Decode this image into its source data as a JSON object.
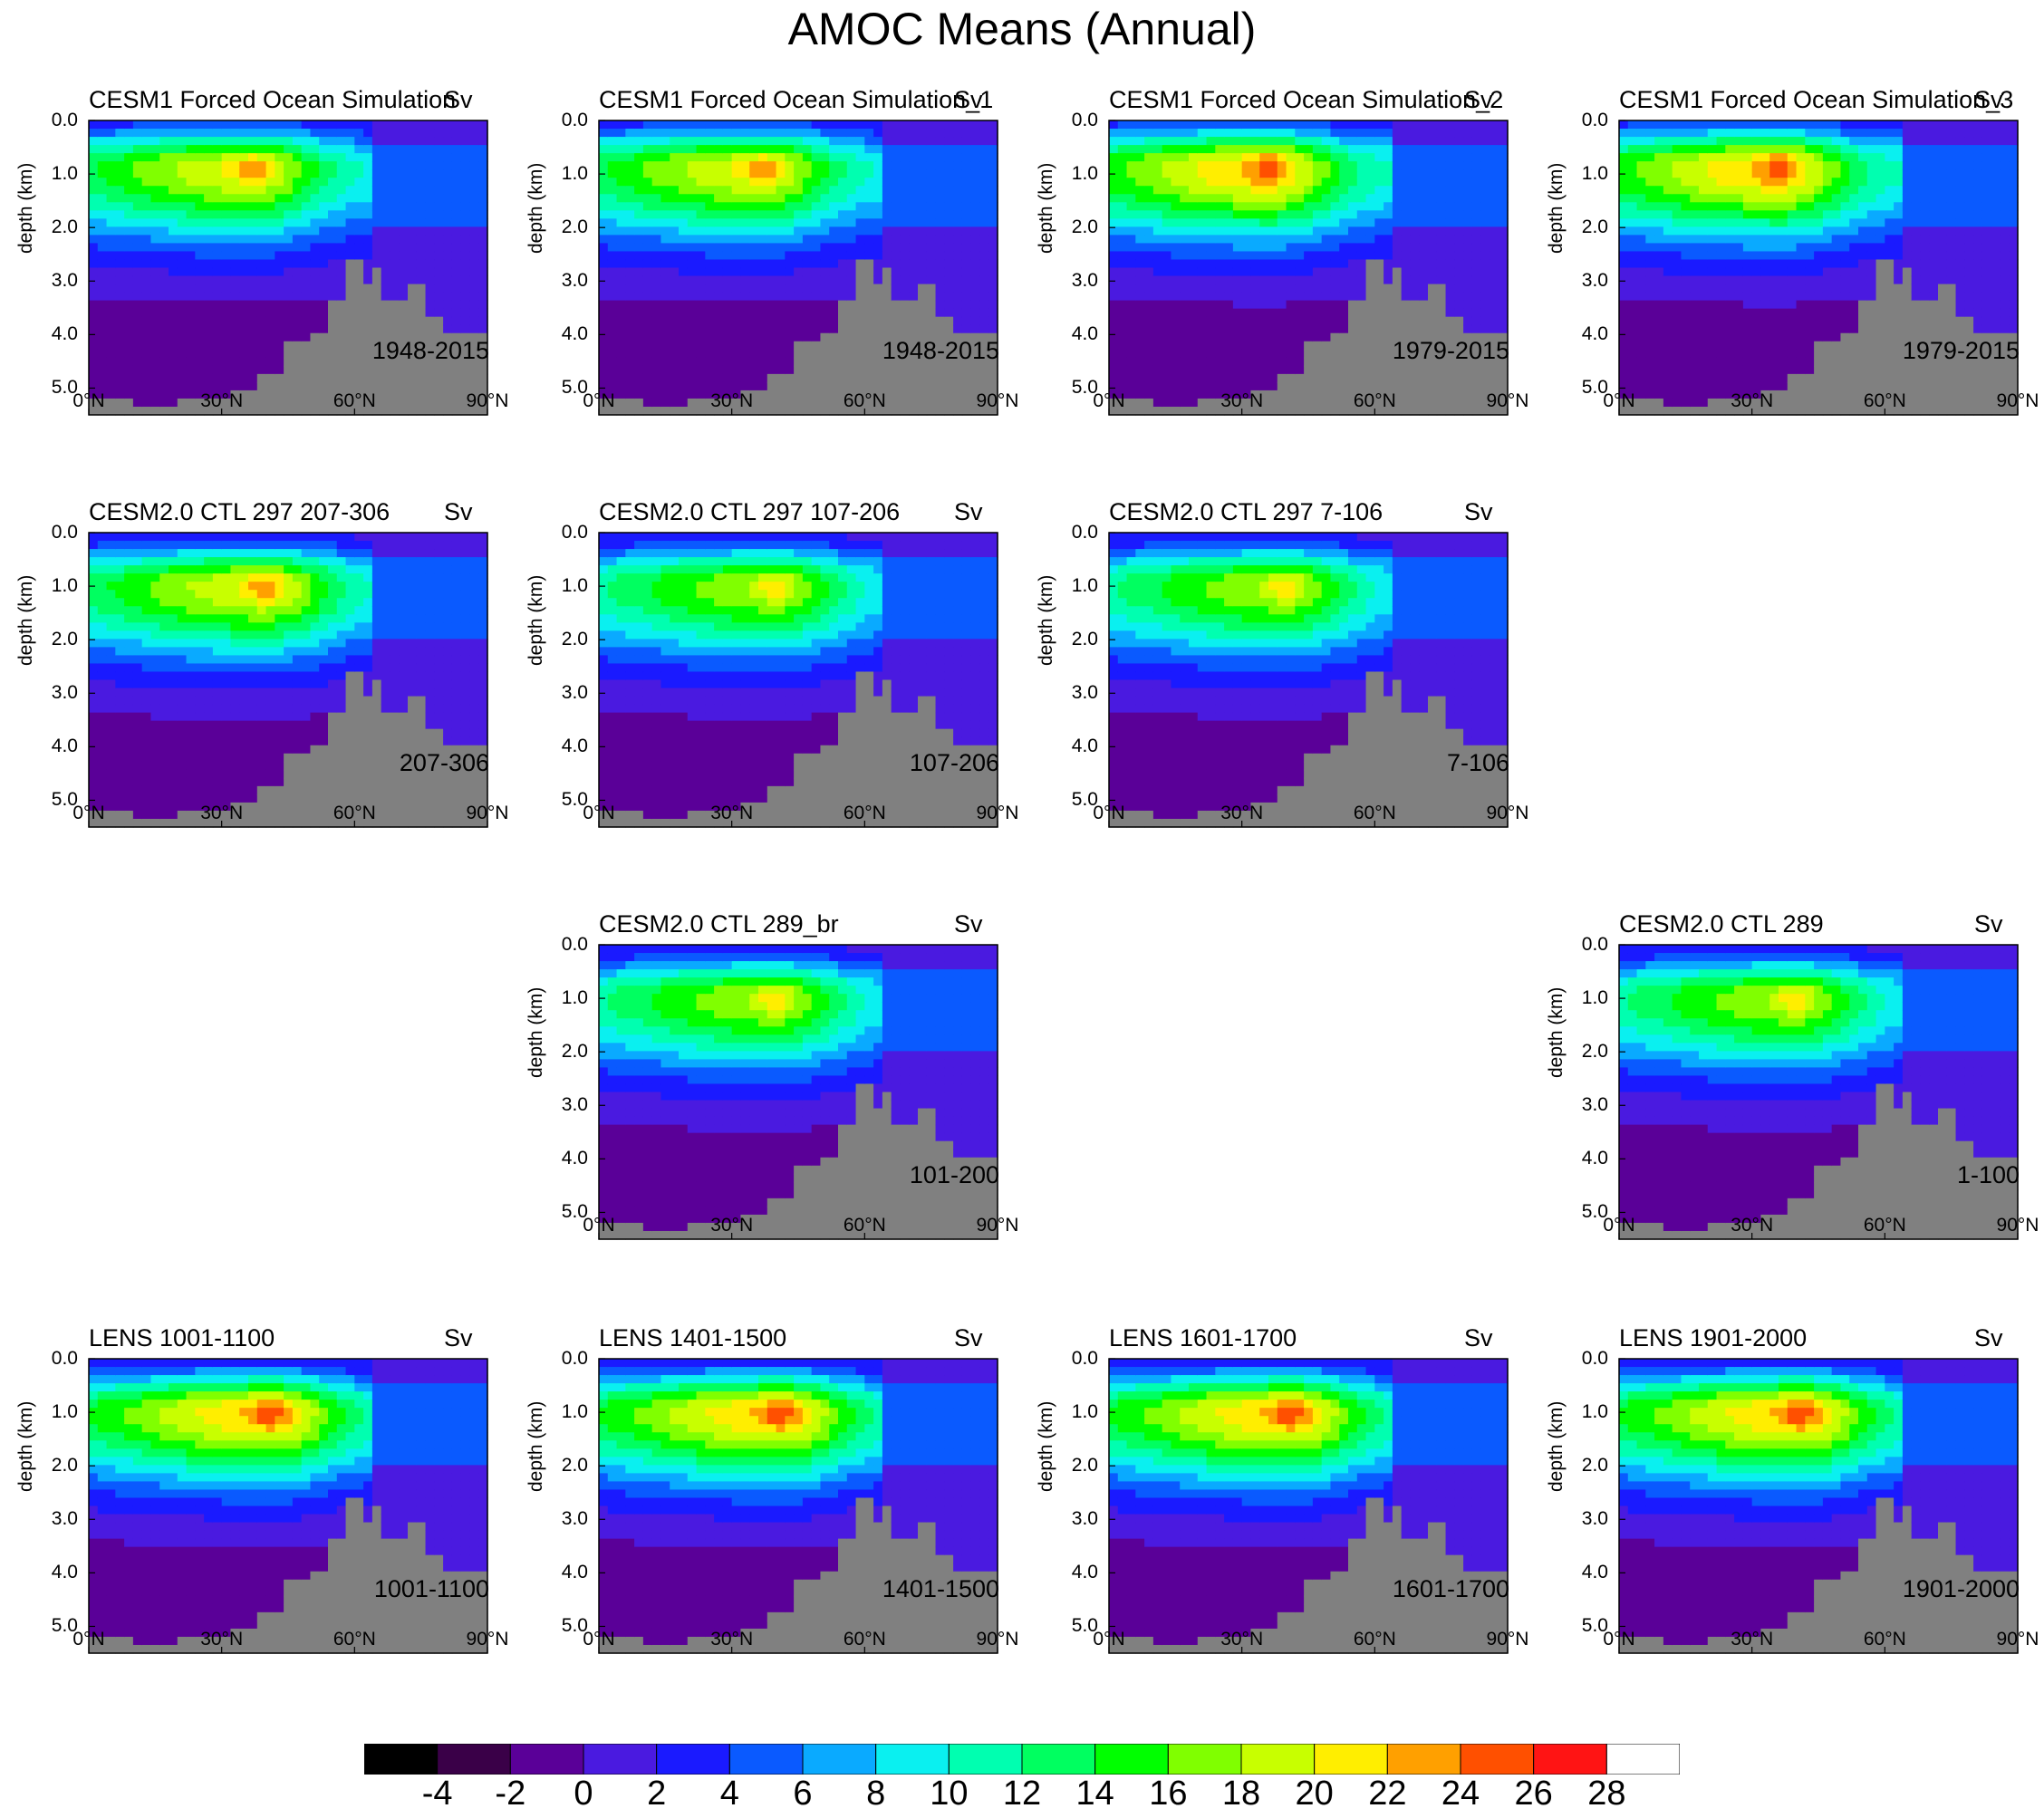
{
  "figure": {
    "title": "AMOC Means (Annual)"
  },
  "axes": {
    "ylabel": "depth (km)",
    "yticks": [
      "0.0",
      "1.0",
      "2.0",
      "3.0",
      "4.0",
      "5.0"
    ],
    "xticks": [
      "0°N",
      "30°N",
      "60°N",
      "90°N"
    ],
    "unit": "Sv"
  },
  "colorbar": {
    "labels": [
      "-4",
      "-2",
      "0",
      "2",
      "4",
      "6",
      "8",
      "10",
      "12",
      "14",
      "16",
      "18",
      "20",
      "22",
      "24",
      "26",
      "28"
    ],
    "colors": [
      "#000000",
      "#3a0048",
      "#5a0098",
      "#4a1ae0",
      "#1a1aff",
      "#0a5aff",
      "#0aaaff",
      "#0af0f0",
      "#00ffb0",
      "#00ff60",
      "#00ff00",
      "#80ff00",
      "#c8ff00",
      "#ffee00",
      "#ffa000",
      "#ff5000",
      "#ff1414",
      "#ffffff"
    ]
  },
  "chart_data": [
    {
      "type": "heatmap",
      "title": "CESM1 Forced Ocean Simulation",
      "label": "1948-2015",
      "unit": "Sv",
      "peak_Sv": 24,
      "peak_lat": 37,
      "peak_depth_km": 0.9,
      "xlim": [
        0,
        90
      ],
      "ylim": [
        5.5,
        0
      ]
    },
    {
      "type": "heatmap",
      "title": "CESM1 Forced Ocean Simulation_1",
      "label": "1948-2015",
      "unit": "Sv",
      "peak_Sv": 24,
      "peak_lat": 37,
      "peak_depth_km": 0.9,
      "xlim": [
        0,
        90
      ],
      "ylim": [
        5.5,
        0
      ]
    },
    {
      "type": "heatmap",
      "title": "CESM1 Forced Ocean Simulation_2",
      "label": "1979-2015",
      "unit": "Sv",
      "peak_Sv": 26,
      "peak_lat": 36,
      "peak_depth_km": 0.9,
      "xlim": [
        0,
        90
      ],
      "ylim": [
        5.5,
        0
      ]
    },
    {
      "type": "heatmap",
      "title": "CESM1 Forced Ocean Simulation_3",
      "label": "1979-2015",
      "unit": "Sv",
      "peak_Sv": 26,
      "peak_lat": 36,
      "peak_depth_km": 0.9,
      "xlim": [
        0,
        90
      ],
      "ylim": [
        5.5,
        0
      ]
    },
    {
      "type": "heatmap",
      "title": "CESM2.0 CTL 297 207-306",
      "label": "207-306",
      "unit": "Sv",
      "peak_Sv": 24,
      "peak_lat": 40,
      "peak_depth_km": 1.0,
      "xlim": [
        0,
        90
      ],
      "ylim": [
        5.5,
        0
      ]
    },
    {
      "type": "heatmap",
      "title": "CESM2.0 CTL 297 107-206",
      "label": "107-206",
      "unit": "Sv",
      "peak_Sv": 22,
      "peak_lat": 40,
      "peak_depth_km": 1.0,
      "xlim": [
        0,
        90
      ],
      "ylim": [
        5.5,
        0
      ]
    },
    {
      "type": "heatmap",
      "title": "CESM2.0 CTL 297 7-106",
      "label": "7-106",
      "unit": "Sv",
      "peak_Sv": 22,
      "peak_lat": 40,
      "peak_depth_km": 1.0,
      "xlim": [
        0,
        90
      ],
      "ylim": [
        5.5,
        0
      ]
    },
    {
      "type": "heatmap",
      "title": "CESM2.0 CTL 289_br",
      "label": "101-200",
      "unit": "Sv",
      "peak_Sv": 22,
      "peak_lat": 40,
      "peak_depth_km": 1.0,
      "xlim": [
        0,
        90
      ],
      "ylim": [
        5.5,
        0
      ]
    },
    {
      "type": "heatmap",
      "title": "CESM2.0 CTL 289",
      "label": "1-100",
      "unit": "Sv",
      "peak_Sv": 22,
      "peak_lat": 40,
      "peak_depth_km": 1.0,
      "xlim": [
        0,
        90
      ],
      "ylim": [
        5.5,
        0
      ]
    },
    {
      "type": "heatmap",
      "title": "LENS 1001-1100",
      "label": "1001-1100",
      "unit": "Sv",
      "peak_Sv": 26,
      "peak_lat": 41,
      "peak_depth_km": 1.0,
      "xlim": [
        0,
        90
      ],
      "ylim": [
        5.5,
        0
      ]
    },
    {
      "type": "heatmap",
      "title": "LENS 1401-1500",
      "label": "1401-1500",
      "unit": "Sv",
      "peak_Sv": 26,
      "peak_lat": 41,
      "peak_depth_km": 1.0,
      "xlim": [
        0,
        90
      ],
      "ylim": [
        5.5,
        0
      ]
    },
    {
      "type": "heatmap",
      "title": "LENS 1601-1700",
      "label": "1601-1700",
      "unit": "Sv",
      "peak_Sv": 26,
      "peak_lat": 41,
      "peak_depth_km": 1.0,
      "xlim": [
        0,
        90
      ],
      "ylim": [
        5.5,
        0
      ]
    },
    {
      "type": "heatmap",
      "title": "LENS 1901-2000",
      "label": "1901-2000",
      "unit": "Sv",
      "peak_Sv": 26,
      "peak_lat": 41,
      "peak_depth_km": 1.0,
      "xlim": [
        0,
        90
      ],
      "ylim": [
        5.5,
        0
      ]
    }
  ]
}
